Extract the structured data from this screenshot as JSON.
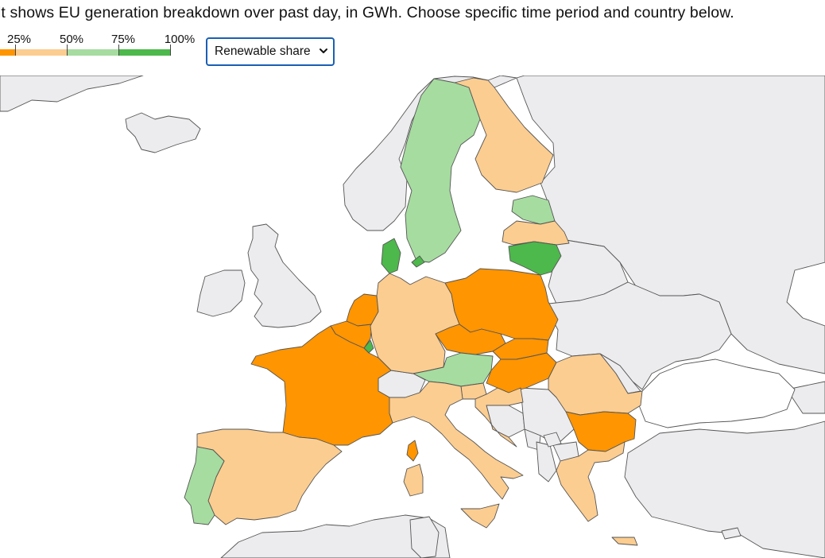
{
  "intro_text": "lt shows EU generation breakdown over past day, in GWh. Choose specific time period and country below.",
  "legend": {
    "ticks": [
      "25%",
      "50%",
      "75%",
      "100%"
    ],
    "bins": [
      {
        "range": "0-25%",
        "color": "#ff9500"
      },
      {
        "range": "25-50%",
        "color": "#fccd90"
      },
      {
        "range": "50-75%",
        "color": "#a6dca0"
      },
      {
        "range": "75-100%",
        "color": "#4db84b"
      }
    ]
  },
  "metric_select": {
    "selected": "Renewable share",
    "icon": "chevron-down-icon"
  },
  "map": {
    "background_land": "#ececee",
    "sea": "#ffffff",
    "border": "#555555",
    "share_classes": {
      "0-25%": [
        "France",
        "Belgium",
        "Netherlands",
        "Poland",
        "Czechia",
        "Slovakia",
        "Hungary",
        "Bulgaria",
        "Corsica"
      ],
      "25-50%": [
        "Spain",
        "Italy",
        "Germany",
        "Finland",
        "Latvia",
        "Romania",
        "Greece",
        "Slovenia",
        "Croatia",
        "Sardinia",
        "Sicily",
        "Crete"
      ],
      "50-75%": [
        "Sweden",
        "Estonia",
        "Austria",
        "Portugal"
      ],
      "75-100%": [
        "Denmark",
        "Lithuania",
        "Luxembourg"
      ],
      "non-EU": [
        "Norway",
        "United Kingdom",
        "Ireland",
        "Switzerland",
        "Serbia",
        "Bosnia and Herzegovina",
        "Montenegro",
        "Albania",
        "North Macedonia",
        "Ukraine",
        "Belarus",
        "Russia",
        "Turkey",
        "Iceland",
        "Morocco",
        "Algeria",
        "Tunisia"
      ]
    }
  }
}
